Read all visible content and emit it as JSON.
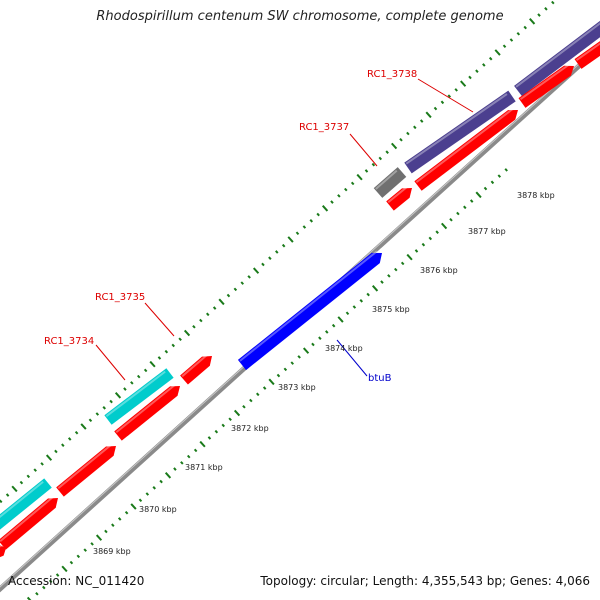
{
  "title": "Rhodospirillum centenum SW chromosome, complete genome",
  "footer": {
    "accession": "Accession: NC_011420",
    "summary": "Topology: circular; Length: 4,355,543 bp; Genes: 4,066"
  },
  "colors": {
    "backbone": "#8a8a8a",
    "forward_gene": "#ff0000",
    "rna_gene": "#00cccc",
    "hypothetical": "#4b3f8f",
    "pseudo": "#707070",
    "named_gene": "#0000ff",
    "tick": "#1a7a1a",
    "gene_label": "#dd0000",
    "named_label": "#0000cc"
  },
  "ruler": {
    "unit": "kbp",
    "labels": [
      "3869 kbp",
      "3870 kbp",
      "3871 kbp",
      "3872 kbp",
      "3873 kbp",
      "3874 kbp",
      "3875 kbp",
      "3876 kbp",
      "3877 kbp",
      "3878 kbp"
    ]
  },
  "gene_labels": [
    {
      "id": "RC1_3734",
      "kind": "locus"
    },
    {
      "id": "RC1_3735",
      "kind": "locus"
    },
    {
      "id": "RC1_3737",
      "kind": "locus"
    },
    {
      "id": "RC1_3738",
      "kind": "locus"
    },
    {
      "id": "btuB",
      "kind": "named"
    }
  ]
}
